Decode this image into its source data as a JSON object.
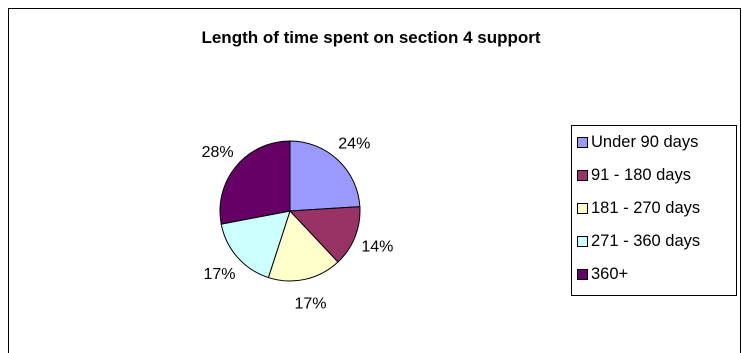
{
  "chart_data": {
    "type": "pie",
    "title": "Length of time spent on section 4 support",
    "categories": [
      "Under 90 days",
      "91 - 180 days",
      "181 - 270 days",
      "271 - 360 days",
      "360+"
    ],
    "values": [
      24,
      14,
      17,
      17,
      28
    ],
    "labels": [
      "24%",
      "14%",
      "17%",
      "17%",
      "28%"
    ],
    "colors": [
      "#9999ff",
      "#993366",
      "#ffffcc",
      "#ccffff",
      "#660066"
    ],
    "legend_position": "right"
  }
}
